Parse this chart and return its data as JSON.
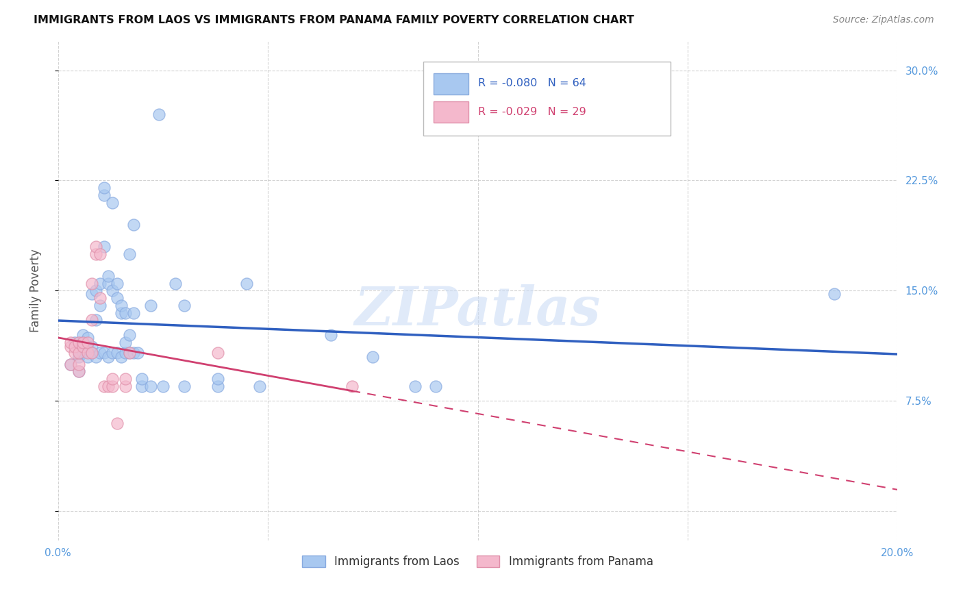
{
  "title": "IMMIGRANTS FROM LAOS VS IMMIGRANTS FROM PANAMA FAMILY POVERTY CORRELATION CHART",
  "source": "Source: ZipAtlas.com",
  "ylabel": "Family Poverty",
  "x_min": 0.0,
  "x_max": 0.2,
  "y_min": -0.02,
  "y_max": 0.32,
  "x_ticks": [
    0.0,
    0.05,
    0.1,
    0.15,
    0.2
  ],
  "x_tick_labels": [
    "0.0%",
    "",
    "",
    "",
    "20.0%"
  ],
  "y_ticks": [
    0.0,
    0.075,
    0.15,
    0.225,
    0.3
  ],
  "y_tick_labels_right": [
    "",
    "7.5%",
    "15.0%",
    "22.5%",
    "30.0%"
  ],
  "laos_color": "#a8c8f0",
  "panama_color": "#f4b8cc",
  "laos_line_color": "#3060c0",
  "panama_line_color": "#d04070",
  "legend_label1": "Immigrants from Laos",
  "legend_label2": "Immigrants from Panama",
  "laos_points": [
    [
      0.003,
      0.1
    ],
    [
      0.004,
      0.115
    ],
    [
      0.005,
      0.095
    ],
    [
      0.005,
      0.105
    ],
    [
      0.005,
      0.108
    ],
    [
      0.005,
      0.112
    ],
    [
      0.006,
      0.108
    ],
    [
      0.006,
      0.115
    ],
    [
      0.006,
      0.12
    ],
    [
      0.007,
      0.105
    ],
    [
      0.007,
      0.112
    ],
    [
      0.007,
      0.118
    ],
    [
      0.008,
      0.108
    ],
    [
      0.008,
      0.112
    ],
    [
      0.008,
      0.148
    ],
    [
      0.009,
      0.105
    ],
    [
      0.009,
      0.13
    ],
    [
      0.009,
      0.15
    ],
    [
      0.01,
      0.108
    ],
    [
      0.01,
      0.14
    ],
    [
      0.01,
      0.155
    ],
    [
      0.011,
      0.108
    ],
    [
      0.011,
      0.18
    ],
    [
      0.011,
      0.215
    ],
    [
      0.011,
      0.22
    ],
    [
      0.012,
      0.105
    ],
    [
      0.012,
      0.155
    ],
    [
      0.012,
      0.16
    ],
    [
      0.013,
      0.108
    ],
    [
      0.013,
      0.15
    ],
    [
      0.013,
      0.21
    ],
    [
      0.014,
      0.108
    ],
    [
      0.014,
      0.145
    ],
    [
      0.014,
      0.155
    ],
    [
      0.015,
      0.105
    ],
    [
      0.015,
      0.135
    ],
    [
      0.015,
      0.14
    ],
    [
      0.016,
      0.108
    ],
    [
      0.016,
      0.115
    ],
    [
      0.016,
      0.135
    ],
    [
      0.017,
      0.108
    ],
    [
      0.017,
      0.12
    ],
    [
      0.017,
      0.175
    ],
    [
      0.018,
      0.108
    ],
    [
      0.018,
      0.135
    ],
    [
      0.018,
      0.195
    ],
    [
      0.019,
      0.108
    ],
    [
      0.02,
      0.085
    ],
    [
      0.02,
      0.09
    ],
    [
      0.022,
      0.085
    ],
    [
      0.022,
      0.14
    ],
    [
      0.024,
      0.27
    ],
    [
      0.025,
      0.085
    ],
    [
      0.028,
      0.155
    ],
    [
      0.03,
      0.085
    ],
    [
      0.03,
      0.14
    ],
    [
      0.038,
      0.085
    ],
    [
      0.038,
      0.09
    ],
    [
      0.045,
      0.155
    ],
    [
      0.048,
      0.085
    ],
    [
      0.065,
      0.12
    ],
    [
      0.075,
      0.105
    ],
    [
      0.085,
      0.085
    ],
    [
      0.09,
      0.085
    ],
    [
      0.185,
      0.148
    ]
  ],
  "panama_points": [
    [
      0.003,
      0.1
    ],
    [
      0.003,
      0.112
    ],
    [
      0.003,
      0.115
    ],
    [
      0.004,
      0.108
    ],
    [
      0.004,
      0.112
    ],
    [
      0.005,
      0.095
    ],
    [
      0.005,
      0.1
    ],
    [
      0.005,
      0.108
    ],
    [
      0.005,
      0.115
    ],
    [
      0.006,
      0.112
    ],
    [
      0.006,
      0.115
    ],
    [
      0.007,
      0.108
    ],
    [
      0.007,
      0.115
    ],
    [
      0.008,
      0.108
    ],
    [
      0.008,
      0.13
    ],
    [
      0.008,
      0.155
    ],
    [
      0.009,
      0.175
    ],
    [
      0.009,
      0.18
    ],
    [
      0.01,
      0.145
    ],
    [
      0.01,
      0.175
    ],
    [
      0.011,
      0.085
    ],
    [
      0.012,
      0.085
    ],
    [
      0.013,
      0.085
    ],
    [
      0.013,
      0.09
    ],
    [
      0.014,
      0.06
    ],
    [
      0.016,
      0.085
    ],
    [
      0.016,
      0.09
    ],
    [
      0.017,
      0.108
    ],
    [
      0.038,
      0.108
    ],
    [
      0.07,
      0.085
    ]
  ],
  "watermark": "ZIPatlas",
  "background_color": "#ffffff",
  "grid_color": "#c8c8c8"
}
